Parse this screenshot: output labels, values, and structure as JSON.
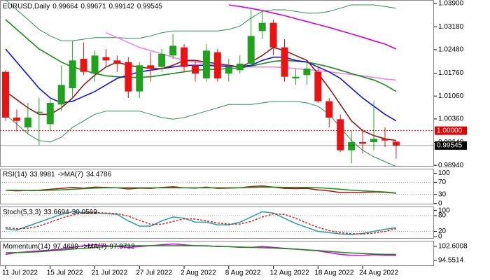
{
  "chart_data": [
    {
      "type": "candlestick",
      "title": "EURUSD,Daily",
      "ohlc": [
        0.99664,
        0.99671,
        0.99142,
        0.99545
      ],
      "categories": [
        "11 Jul 2022",
        null,
        null,
        null,
        "15 Jul 2022",
        null,
        null,
        null,
        "21 Jul 2022",
        null,
        null,
        null,
        "27 Jul 2022",
        null,
        null,
        null,
        "2 Aug 2022",
        null,
        null,
        null,
        "8 Aug 2022",
        null,
        null,
        null,
        "12 Aug 2022",
        null,
        null,
        null,
        "18 Aug 2022",
        null,
        null,
        null,
        "24 Aug 2022",
        null,
        null,
        null
      ],
      "open": [
        1.018,
        1.004,
        1.001,
        1.0055,
        1.002,
        1.008,
        1.013,
        1.022,
        1.0175,
        1.0225,
        1.0215,
        1.021,
        1.012,
        1.02,
        1.0195,
        1.023,
        1.0255,
        1.02,
        1.016,
        1.024,
        1.0175,
        1.0185,
        1.0205,
        1.0305,
        1.033,
        1.0255,
        1.016,
        1.017,
        1.018,
        1.009,
        1.0035,
        0.994,
        0.9965,
        0.9965,
        0.9975,
        0.99664
      ],
      "high": [
        1.0186,
        1.0065,
        1.0085,
        1.01,
        1.0095,
        1.02,
        1.0275,
        1.027,
        1.0245,
        1.025,
        1.023,
        1.0225,
        1.021,
        1.024,
        1.025,
        1.0295,
        1.0265,
        1.0215,
        1.0265,
        1.025,
        1.022,
        1.023,
        1.037,
        1.0365,
        1.034,
        1.028,
        1.019,
        1.021,
        1.02,
        1.01,
        1.005,
        1.0,
        1.0005,
        1.009,
        1.001,
        0.99671
      ],
      "low": [
        1.003,
        0.9998,
        0.999,
        0.9955,
        1.0,
        1.006,
        1.01,
        1.017,
        1.015,
        1.0195,
        1.018,
        1.01,
        1.01,
        1.015,
        1.018,
        1.022,
        1.018,
        1.015,
        1.015,
        1.015,
        1.015,
        1.0175,
        1.02,
        1.028,
        1.023,
        1.015,
        1.014,
        1.014,
        1.0085,
        1.001,
        0.9935,
        0.99,
        0.993,
        0.994,
        0.995,
        0.99142
      ],
      "close": [
        1.004,
        1.003,
        1.004,
        1.0058,
        1.0085,
        1.014,
        1.0215,
        1.018,
        1.023,
        1.0215,
        1.0205,
        1.012,
        1.02,
        1.019,
        1.0235,
        1.026,
        1.0195,
        1.0175,
        1.0245,
        1.016,
        1.0195,
        1.0205,
        1.029,
        1.033,
        1.0255,
        1.0165,
        1.0165,
        1.019,
        1.009,
        1.004,
        0.994,
        0.9965,
        0.996,
        0.9975,
        0.997,
        0.99545
      ],
      "up_color": "#1fa31f",
      "down_color": "#ee1111",
      "lines": [
        {
          "color": "#2e8b57",
          "values": [
            1.04,
            1.037,
            1.034,
            1.031,
            1.029,
            1.0275,
            1.0275,
            1.028,
            1.0285,
            1.0285,
            1.0285,
            1.0283,
            1.0283,
            1.029,
            1.03,
            1.0305,
            1.0305,
            1.0305,
            1.0305,
            1.0305,
            1.031,
            1.032,
            1.0345,
            1.0365,
            1.037,
            1.037,
            1.0365,
            1.036,
            1.036,
            1.0365,
            1.0375,
            1.0385,
            1.0385,
            1.0385,
            1.038,
            1.0375
          ]
        },
        {
          "color": "#2e8b57",
          "values": [
            1.005,
            1.002,
            0.999,
            0.997,
            0.9965,
            0.998,
            1.001,
            1.003,
            1.005,
            1.006,
            1.006,
            1.006,
            1.006,
            1.005,
            1.004,
            1.0035,
            1.004,
            1.005,
            1.006,
            1.007,
            1.008,
            1.008,
            1.008,
            1.0085,
            1.009,
            1.009,
            1.009,
            1.0085,
            1.0075,
            1.005,
            1.001,
            0.997,
            0.994,
            0.992,
            0.9905,
            0.989
          ]
        },
        {
          "color": "#ee82ee",
          "values": [
            null,
            null,
            null,
            null,
            null,
            null,
            null,
            null,
            null,
            1.03,
            1.0285,
            1.027,
            1.0255,
            1.0245,
            1.0235,
            1.0225,
            1.0215,
            1.021,
            1.0205,
            1.02,
            1.0198,
            1.0196,
            1.0195,
            1.0195,
            1.0195,
            1.0193,
            1.019,
            1.0187,
            1.0184,
            1.018,
            1.0176,
            1.0172,
            1.0168,
            1.0163,
            1.0158,
            1.0155
          ]
        },
        {
          "color": "#d400d4",
          "values": [
            null,
            null,
            null,
            null,
            null,
            null,
            null,
            null,
            null,
            null,
            null,
            null,
            null,
            null,
            null,
            null,
            null,
            null,
            null,
            null,
            1.0385,
            1.038,
            1.0374,
            1.0368,
            1.036,
            1.0352,
            1.0343,
            1.0334,
            1.0325,
            1.0316,
            1.0306,
            1.0296,
            1.0286,
            1.0275,
            1.0265,
            1.025
          ]
        },
        {
          "color": "#1a8a1a",
          "values": [
            1.034,
            1.031,
            1.028,
            1.025,
            1.023,
            1.021,
            1.0195,
            1.0185,
            1.0175,
            1.0168,
            1.0165,
            1.0163,
            1.0163,
            1.0165,
            1.017,
            1.0175,
            1.018,
            1.0185,
            1.0187,
            1.0188,
            1.019,
            1.0192,
            1.0198,
            1.0205,
            1.0212,
            1.0215,
            1.0213,
            1.021,
            1.0203,
            1.0195,
            1.0185,
            1.0175,
            1.0165,
            1.0155,
            1.014,
            1.012
          ]
        },
        {
          "color": "#1010ee",
          "values": [
            1.025,
            1.021,
            1.017,
            1.013,
            1.01,
            1.0085,
            1.009,
            1.0105,
            1.012,
            1.014,
            1.016,
            1.017,
            1.018,
            1.0185,
            1.019,
            1.0195,
            1.02,
            1.02,
            1.02,
            1.0198,
            1.0197,
            1.0196,
            1.02,
            1.0215,
            1.0225,
            1.0225,
            1.0215,
            1.021,
            1.0195,
            1.018,
            1.016,
            1.013,
            1.01,
            1.0075,
            1.005,
            1.003
          ]
        },
        {
          "color": "#8b1a1a",
          "values": [
            1.012,
            1.0095,
            1.007,
            1.005,
            1.005,
            1.007,
            1.01,
            1.014,
            1.017,
            1.0195,
            1.021,
            1.02,
            1.0195,
            1.019,
            1.019,
            1.02,
            1.0215,
            1.0215,
            1.021,
            1.0205,
            1.02,
            1.0195,
            1.021,
            1.023,
            1.0255,
            1.0245,
            1.023,
            1.0215,
            1.0175,
            1.013,
            1.008,
            1.003,
            1.0,
            0.9985,
            0.9975,
            0.997
          ]
        }
      ],
      "hlines": [
        {
          "value": 1,
          "label": "1.00000",
          "color": "#e00000"
        },
        {
          "value": 0.99545,
          "label": "0.99545",
          "color": "#000000"
        }
      ],
      "ylim": [
        0.989,
        1.04
      ],
      "yticks": [
        {
          "value": 1.039,
          "label": "1.03900"
        },
        {
          "value": 1.0318,
          "label": "1.03180"
        },
        {
          "value": 1.0248,
          "label": "1.02480"
        },
        {
          "value": 1.0176,
          "label": "1.01760"
        },
        {
          "value": 1.0106,
          "label": "1.01060"
        },
        {
          "value": 1.0036,
          "label": "1.00360"
        },
        {
          "value": 0.9964,
          "label": "0.99640"
        },
        {
          "value": 0.9894,
          "label": "0.98940"
        }
      ]
    },
    {
      "type": "line",
      "title": "RSI(14)",
      "values_text": [
        33.9981
      ],
      "ma_title": "->MA(7)",
      "ma_value": 34.4786,
      "ylim": [
        -3,
        115
      ],
      "yticks": [
        0,
        30,
        70,
        100
      ],
      "levels": [
        30,
        70
      ],
      "series": [
        {
          "color": "#b01010",
          "values": [
            44,
            42,
            43,
            44,
            47,
            50,
            53,
            51,
            54,
            53,
            52,
            48,
            51,
            50,
            53,
            55,
            52,
            51,
            54,
            50,
            51,
            52,
            56,
            58,
            54,
            50,
            49,
            50,
            45,
            42,
            36,
            37,
            37,
            38,
            37,
            34
          ]
        },
        {
          "color": "#1a8a1a",
          "values": [
            44,
            44,
            43,
            43,
            44,
            45,
            47,
            49,
            51,
            52,
            52,
            52,
            52,
            52,
            52,
            52,
            52,
            52,
            52,
            52,
            52,
            52,
            53,
            54,
            54,
            53,
            53,
            53,
            52,
            50,
            47,
            44,
            42,
            40,
            38,
            34.5
          ]
        }
      ]
    },
    {
      "type": "line",
      "title": "Stoch(5,3,3)",
      "values_text": [
        33.6694,
        30.0569
      ],
      "ylim": [
        -8,
        115
      ],
      "yticks": [
        0,
        20,
        80,
        100
      ],
      "levels": [
        20,
        80
      ],
      "series": [
        {
          "color": "#20a0a0",
          "dash": false,
          "values": [
            30,
            25,
            40,
            55,
            70,
            85,
            95,
            92,
            90,
            88,
            85,
            60,
            40,
            40,
            60,
            75,
            70,
            55,
            55,
            45,
            45,
            55,
            75,
            95,
            90,
            70,
            50,
            35,
            20,
            15,
            10,
            8,
            12,
            20,
            28,
            33.7
          ]
        },
        {
          "color": "#e02020",
          "dash": true,
          "values": [
            35,
            30,
            32,
            40,
            55,
            70,
            83,
            90,
            92,
            90,
            88,
            78,
            62,
            47,
            47,
            58,
            68,
            67,
            60,
            52,
            48,
            48,
            58,
            75,
            87,
            85,
            70,
            52,
            35,
            23,
            15,
            11,
            10,
            13,
            20,
            30
          ]
        }
      ]
    },
    {
      "type": "line",
      "title": "Momentum(14)",
      "values_text": [
        97.4689
      ],
      "ma_title": "->MA(7)",
      "ma_value": 97.9712,
      "ylim": [
        91.3,
        105.8
      ],
      "yticks": [
        94.5514,
        102.6008
      ],
      "series": [
        {
          "color": "#d400d4",
          "values": [
            98,
            99,
            99.5,
            100,
            100.5,
            101,
            102,
            103,
            103.5,
            103,
            102.5,
            102,
            102.5,
            103,
            103.5,
            104,
            103.5,
            103,
            103,
            102.5,
            102.5,
            102,
            102,
            102.5,
            102,
            101.5,
            101,
            100.5,
            100,
            99,
            98,
            97.5,
            97.5,
            97.8,
            97.5,
            97.47
          ]
        },
        {
          "color": "#1a8a1a",
          "values": [
            99,
            99,
            99.2,
            99.5,
            100,
            100.5,
            101,
            101.5,
            102,
            102.5,
            102.8,
            103,
            103,
            103,
            103,
            103,
            103,
            103,
            102.8,
            102.6,
            102.4,
            102.2,
            102,
            101.8,
            101.6,
            101.3,
            101,
            100.6,
            100.2,
            99.7,
            99.2,
            98.8,
            98.5,
            98.2,
            98,
            97.97
          ]
        }
      ]
    }
  ]
}
